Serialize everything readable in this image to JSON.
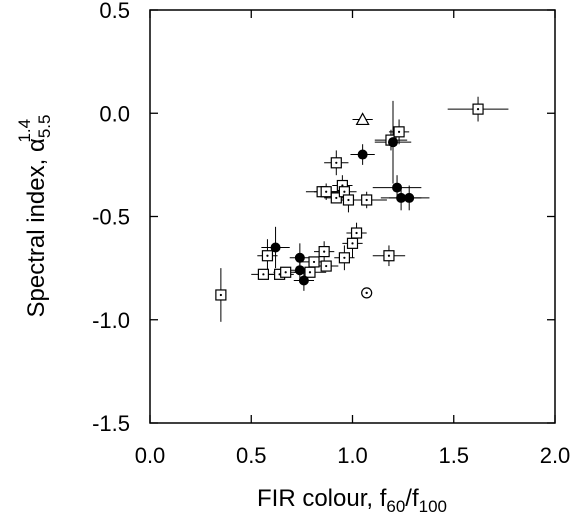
{
  "chart_data": {
    "type": "scatter",
    "xlabel": {
      "main": "FIR colour, f",
      "sub1": "60",
      "mid": "/f",
      "sub2": "100"
    },
    "ylabel": {
      "main": "Spectral index, α",
      "sub": "5.5",
      "sup": "1.4"
    },
    "xlim": [
      0.0,
      2.0
    ],
    "ylim": [
      -1.5,
      0.5
    ],
    "x_ticks": [
      0.0,
      0.5,
      1.0,
      1.5,
      2.0
    ],
    "x_tick_labels": [
      "0.0",
      "0.5",
      "1.0",
      "1.5",
      "2.0"
    ],
    "y_ticks": [
      0.5,
      0.0,
      -0.5,
      -1.0,
      -1.5
    ],
    "y_tick_labels": [
      "0.5",
      "0.0",
      "-0.5",
      "-1.0",
      "-1.5"
    ],
    "grid": false,
    "series": [
      {
        "marker": "open-square-dot",
        "points": [
          {
            "x": 0.35,
            "y": -0.88,
            "xerr": 0.0,
            "yerr": 0.13
          },
          {
            "x": 0.56,
            "y": -0.78,
            "xerr": 0.06,
            "yerr": 0.0
          },
          {
            "x": 0.58,
            "y": -0.69,
            "xerr": 0.05,
            "yerr": 0.08
          },
          {
            "x": 0.64,
            "y": -0.78,
            "xerr": 0.07,
            "yerr": 0.0
          },
          {
            "x": 0.67,
            "y": -0.77,
            "xerr": 0.06,
            "yerr": 0.0
          },
          {
            "x": 0.79,
            "y": -0.77,
            "xerr": 0.08,
            "yerr": 0.0
          },
          {
            "x": 0.81,
            "y": -0.72,
            "xerr": 0.06,
            "yerr": 0.0
          },
          {
            "x": 0.86,
            "y": -0.67,
            "xerr": 0.05,
            "yerr": 0.05
          },
          {
            "x": 0.87,
            "y": -0.74,
            "xerr": 0.06,
            "yerr": 0.0
          },
          {
            "x": 0.96,
            "y": -0.7,
            "xerr": 0.05,
            "yerr": 0.06
          },
          {
            "x": 1.0,
            "y": -0.63,
            "xerr": 0.05,
            "yerr": 0.07
          },
          {
            "x": 1.02,
            "y": -0.58,
            "xerr": 0.05,
            "yerr": 0.05
          },
          {
            "x": 1.18,
            "y": -0.69,
            "xerr": 0.08,
            "yerr": 0.05
          },
          {
            "x": 0.85,
            "y": -0.38,
            "xerr": 0.08,
            "yerr": 0.0
          },
          {
            "x": 0.87,
            "y": -0.38,
            "xerr": 0.06,
            "yerr": 0.04
          },
          {
            "x": 0.92,
            "y": -0.41,
            "xerr": 0.06,
            "yerr": 0.0
          },
          {
            "x": 0.95,
            "y": -0.35,
            "xerr": 0.05,
            "yerr": 0.05
          },
          {
            "x": 0.96,
            "y": -0.38,
            "xerr": 0.06,
            "yerr": 0.05
          },
          {
            "x": 0.98,
            "y": -0.42,
            "xerr": 0.06,
            "yerr": 0.06
          },
          {
            "x": 1.07,
            "y": -0.42,
            "xerr": 0.1,
            "yerr": 0.04
          },
          {
            "x": 0.92,
            "y": -0.24,
            "xerr": 0.06,
            "yerr": 0.06
          },
          {
            "x": 1.19,
            "y": -0.13,
            "xerr": 0.08,
            "yerr": 0.05
          },
          {
            "x": 1.23,
            "y": -0.09,
            "xerr": 0.05,
            "yerr": 0.06
          },
          {
            "x": 1.62,
            "y": 0.02,
            "xerr": 0.15,
            "yerr": 0.06
          }
        ]
      },
      {
        "marker": "filled-circle",
        "points": [
          {
            "x": 0.62,
            "y": -0.65,
            "xerr": 0.07,
            "yerr": 0.1
          },
          {
            "x": 0.74,
            "y": -0.7,
            "xerr": 0.05,
            "yerr": 0.07
          },
          {
            "x": 0.74,
            "y": -0.76,
            "xerr": 0.06,
            "yerr": 0.06
          },
          {
            "x": 0.76,
            "y": -0.81,
            "xerr": 0.05,
            "yerr": 0.05
          },
          {
            "x": 1.05,
            "y": -0.2,
            "xerr": 0.06,
            "yerr": 0.05
          },
          {
            "x": 1.2,
            "y": -0.14,
            "xerr": 0.09,
            "yerr": 0.2
          },
          {
            "x": 1.22,
            "y": -0.36,
            "xerr": 0.12,
            "yerr": 0.06
          },
          {
            "x": 1.24,
            "y": -0.41,
            "xerr": 0.1,
            "yerr": 0.06
          },
          {
            "x": 1.28,
            "y": -0.41,
            "xerr": 0.1,
            "yerr": 0.06
          }
        ]
      },
      {
        "marker": "open-triangle",
        "points": [
          {
            "x": 1.05,
            "y": -0.03,
            "xerr": 0.05,
            "yerr": 0.0
          }
        ]
      },
      {
        "marker": "open-circle-dot",
        "points": [
          {
            "x": 1.07,
            "y": -0.87,
            "xerr": 0.0,
            "yerr": 0.0
          }
        ]
      }
    ]
  }
}
